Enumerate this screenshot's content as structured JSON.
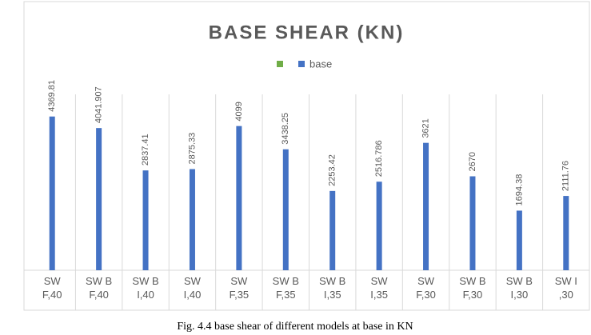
{
  "chart_data": {
    "type": "bar",
    "title": "BASE SHEAR (KN)",
    "categories": [
      "SW F,40",
      "SW B F,40",
      "SW B I,40",
      "SW I,40",
      "SW F,35",
      "SW B F,35",
      "SW B I,35",
      "SW I,35",
      "SW F,30",
      "SW B F,30",
      "SW B I,30",
      "SW I ,30"
    ],
    "series": [
      {
        "name": "base",
        "color": "#4472c4",
        "values": [
          4369.81,
          4041.907,
          2837.41,
          2875.33,
          4099,
          3438.25,
          2253.42,
          2516.786,
          3621,
          2670,
          1694.38,
          2111.76
        ]
      }
    ],
    "ylim": [
      0,
      5000
    ],
    "caption": "Fig. 4.4 base shear of different models at base in KN"
  }
}
